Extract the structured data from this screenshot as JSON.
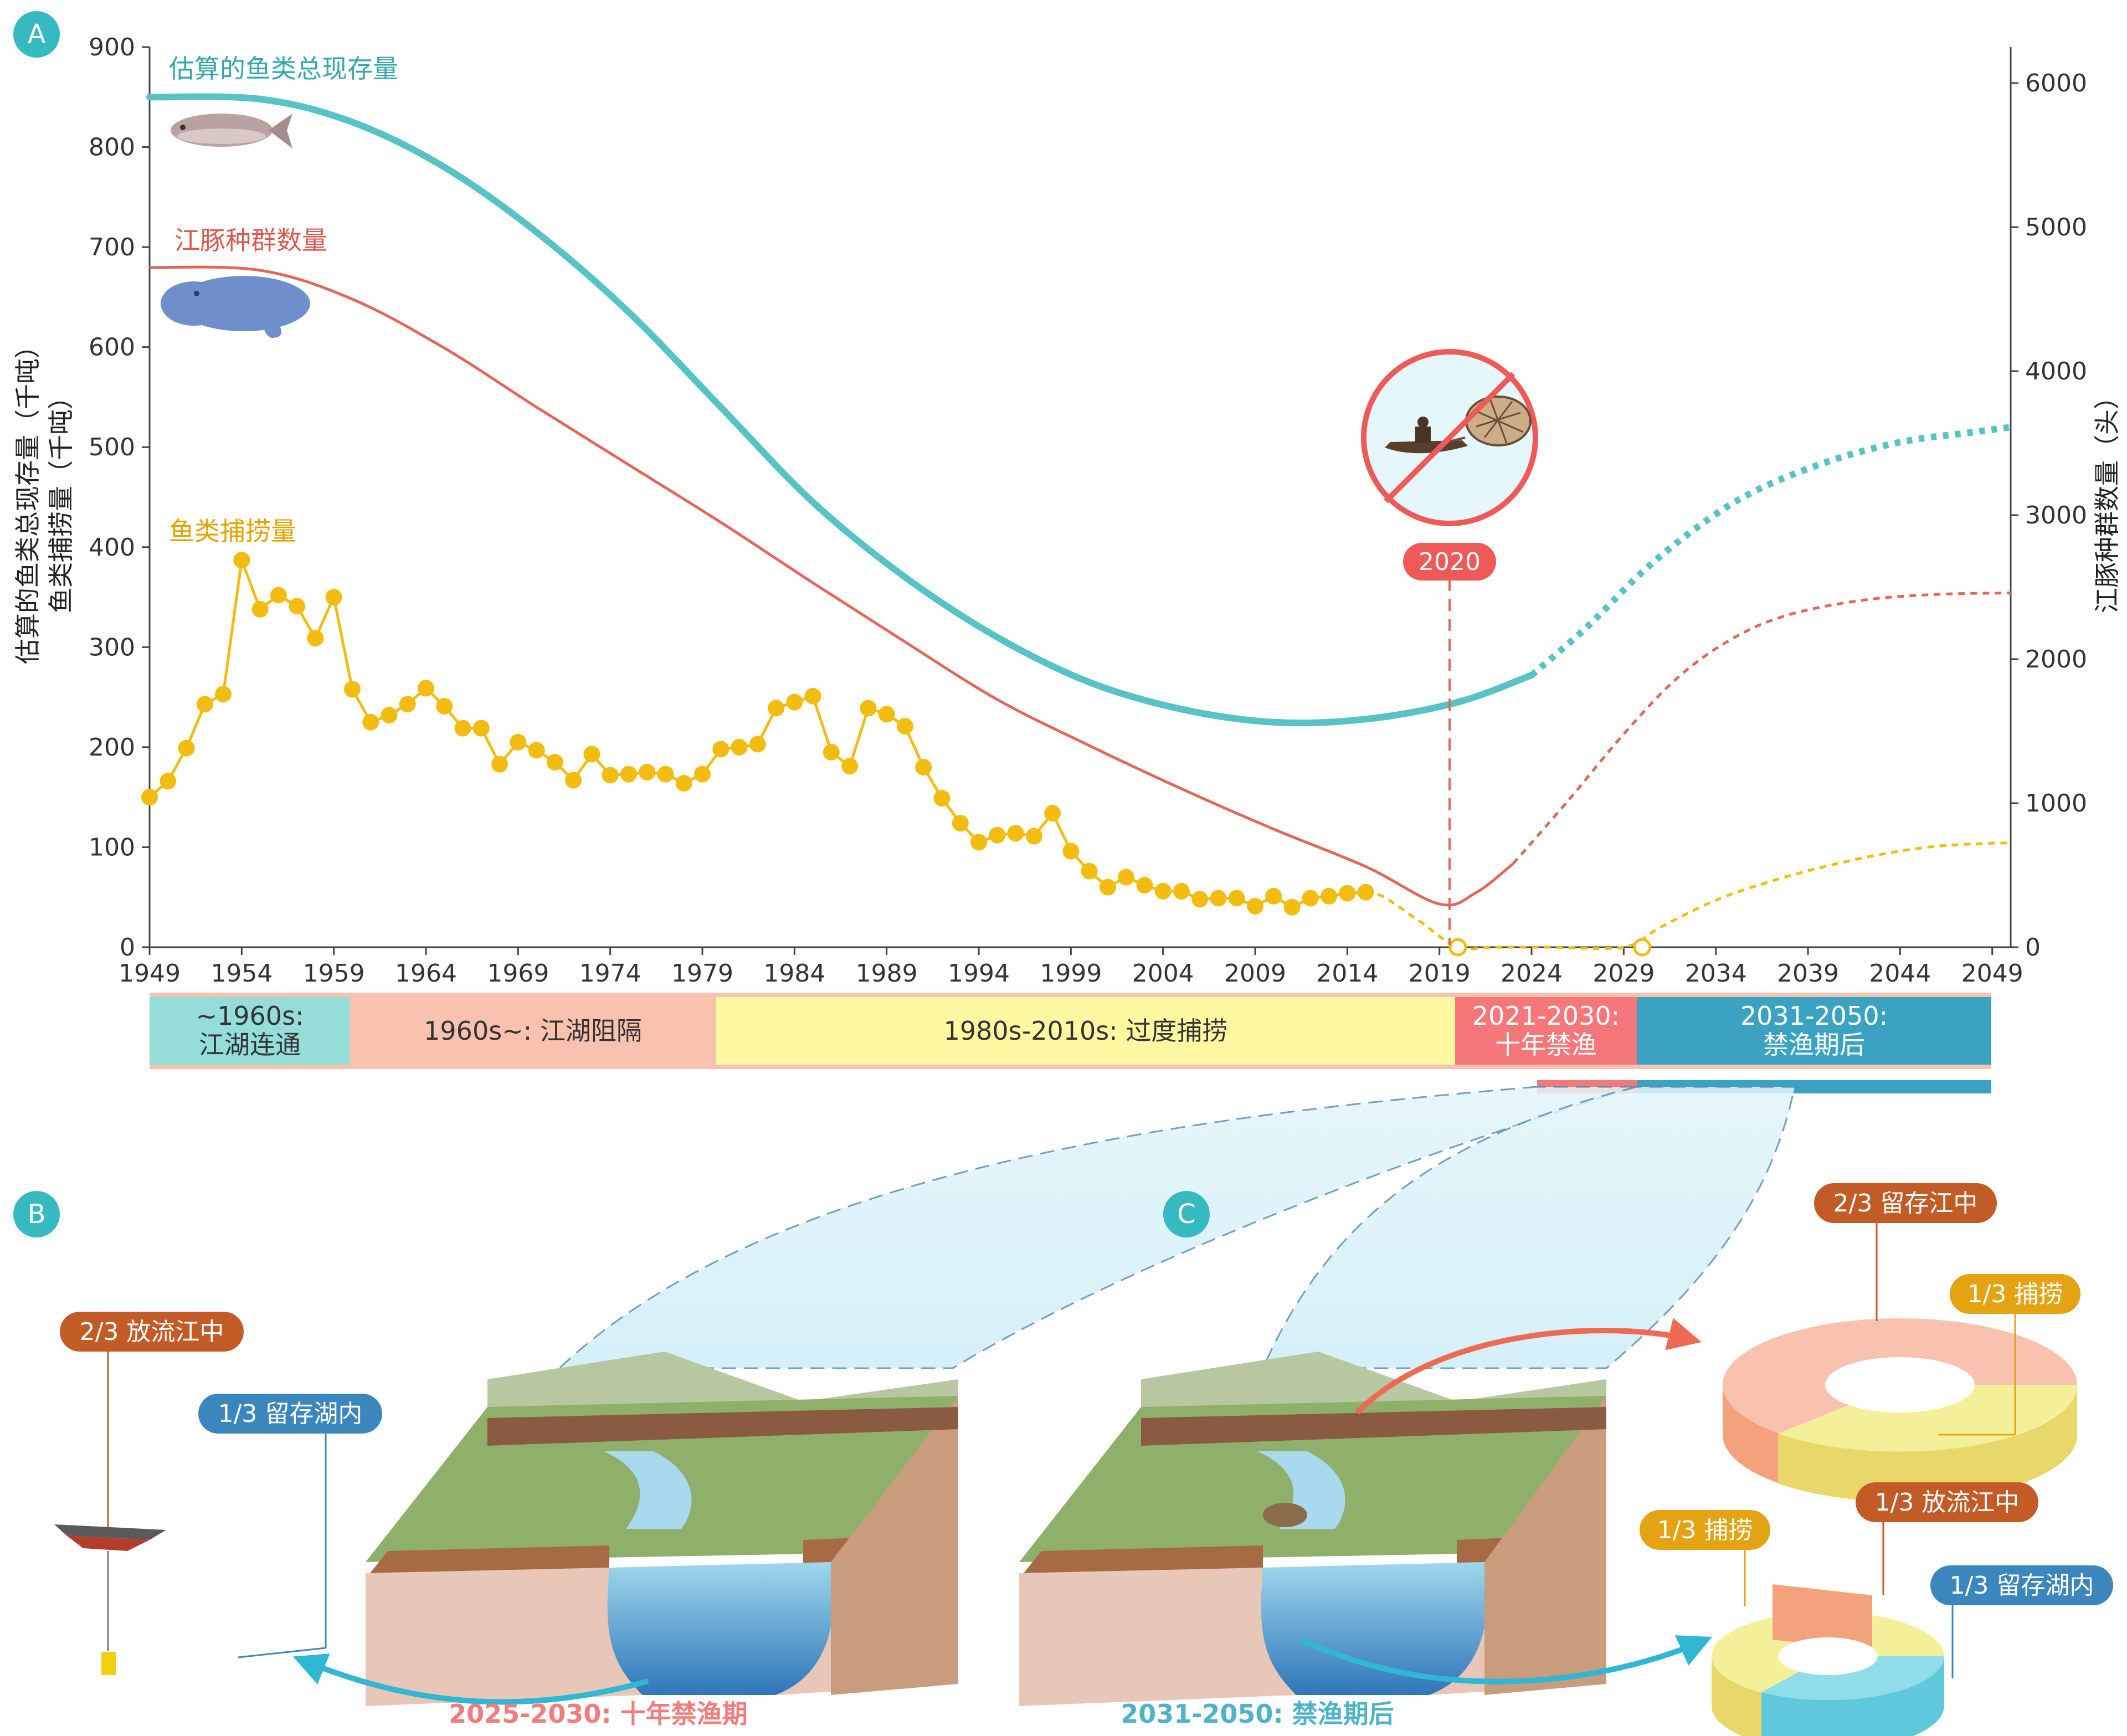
{
  "panels": {
    "a": "A",
    "b": "B",
    "c": "C"
  },
  "colors": {
    "fish_stock": "#57C3C6",
    "porpoise": "#E2665A",
    "catch": "#F2BD10",
    "ban_red": "#F06A66",
    "era1": "#95DDD8",
    "era2": "#F9C2AE",
    "era3": "#FFF8A2",
    "era4": "#F6777A",
    "era5": "#3BA3C1",
    "panel_circle": "#36B9C1",
    "orange_tag": "#C35B26",
    "blue_tag": "#3C86BE",
    "gold_tag": "#E3A312"
  },
  "chart_data": {
    "type": "line",
    "xlabel": "",
    "ylabel_left": [
      "估算的鱼类总现存量（千吨）",
      "鱼类捕捞量（千吨）"
    ],
    "ylabel_right": "江豚种群数量（头）",
    "xlim": [
      1949,
      2050
    ],
    "ylim_left": [
      0,
      900
    ],
    "ylim_right": [
      0,
      6250
    ],
    "x_ticks": [
      "1949",
      "1954",
      "1959",
      "1964",
      "1969",
      "1974",
      "1979",
      "1984",
      "1989",
      "1994",
      "1999",
      "2004",
      "2009",
      "2014",
      "2019",
      "2024",
      "2029",
      "2034",
      "2039",
      "2044",
      "2049"
    ],
    "y_left_ticks": [
      "0",
      "100",
      "200",
      "300",
      "400",
      "500",
      "600",
      "700",
      "800",
      "900"
    ],
    "y_right_ticks": [
      "0",
      "1000",
      "2000",
      "3000",
      "4000",
      "5000",
      "6000"
    ],
    "grid": false,
    "series": [
      {
        "name": "估算的鱼类总现存量",
        "axis": "left",
        "style": "solid",
        "x": [
          1949,
          1955,
          1960,
          1965,
          1970,
          1975,
          1980,
          1985,
          1990,
          1995,
          2000,
          2005,
          2010,
          2015,
          2020,
          2024
        ],
        "y": [
          850,
          848,
          825,
          780,
          715,
          635,
          540,
          445,
          370,
          310,
          265,
          238,
          225,
          228,
          245,
          272
        ],
        "projection": {
          "style": "dotted",
          "x": [
            2024,
            2027,
            2030,
            2033,
            2036,
            2040,
            2044,
            2048,
            2050
          ],
          "y": [
            272,
            320,
            375,
            420,
            455,
            485,
            505,
            515,
            520
          ]
        }
      },
      {
        "name": "江豚种群数量",
        "axis": "right",
        "style": "solid",
        "x": [
          1949,
          1955,
          1960,
          1965,
          1970,
          1975,
          1980,
          1985,
          1990,
          1995,
          2000,
          2005,
          2010,
          2015,
          2019,
          2021,
          2023
        ],
        "y": [
          4720,
          4700,
          4500,
          4160,
          3750,
          3350,
          2950,
          2530,
          2120,
          1720,
          1400,
          1100,
          820,
          560,
          300,
          380,
          580
        ],
        "projection": {
          "style": "dotted",
          "x": [
            2023,
            2026,
            2029,
            2032,
            2035,
            2038,
            2042,
            2046,
            2050
          ],
          "y": [
            580,
            1020,
            1480,
            1880,
            2150,
            2310,
            2410,
            2450,
            2460
          ]
        }
      },
      {
        "name": "鱼类捕捞量",
        "axis": "left",
        "style": "solid-with-markers",
        "x": [
          1949,
          1950,
          1951,
          1952,
          1953,
          1954,
          1955,
          1956,
          1957,
          1958,
          1959,
          1960,
          1961,
          1962,
          1963,
          1964,
          1965,
          1966,
          1967,
          1968,
          1969,
          1970,
          1971,
          1972,
          1973,
          1974,
          1975,
          1976,
          1977,
          1978,
          1979,
          1980,
          1981,
          1982,
          1983,
          1984,
          1985,
          1986,
          1987,
          1988,
          1989,
          1990,
          1991,
          1992,
          1993,
          1994,
          1995,
          1996,
          1997,
          1998,
          1999,
          2000,
          2001,
          2002,
          2003,
          2004,
          2005,
          2006,
          2007,
          2008,
          2009,
          2010,
          2011,
          2012,
          2013,
          2014,
          2015
        ],
        "y": [
          150,
          166,
          199,
          243,
          253,
          387,
          338,
          352,
          341,
          309,
          350,
          258,
          225,
          232,
          243,
          259,
          241,
          219,
          219,
          183,
          205,
          197,
          185,
          167,
          193,
          172,
          173,
          175,
          173,
          164,
          173,
          198,
          200,
          203,
          239,
          245,
          251,
          195,
          181,
          239,
          233,
          221,
          180,
          149,
          124,
          105,
          112,
          114,
          111,
          134,
          96,
          76,
          60,
          70,
          62,
          56,
          56,
          48,
          49,
          49,
          41,
          51,
          40,
          49,
          51,
          54,
          55
        ],
        "projection": {
          "style": "dotted",
          "x": [
            2015,
            2016,
            2018,
            2020,
            2022,
            2025,
            2029,
            2031,
            2034,
            2037,
            2040,
            2043,
            2046,
            2049,
            2050
          ],
          "y": [
            55,
            50,
            25,
            0,
            0,
            0,
            0,
            20,
            47,
            66,
            81,
            93,
            101,
            104,
            104
          ]
        },
        "open_markers": {
          "x": [
            2020,
            2030
          ],
          "y": [
            0,
            0
          ]
        }
      }
    ],
    "annotations": [
      {
        "x": 2020,
        "label": "2020"
      }
    ]
  },
  "eras": [
    {
      "label": "~1960s:",
      "label2": "江湖连通"
    },
    {
      "label": "1960s~: 江湖阻隔"
    },
    {
      "label": "1980s-2010s: 过度捕捞"
    },
    {
      "label": "2021-2030:",
      "label2": "十年禁渔"
    },
    {
      "label": "2031-2050:",
      "label2": "禁渔期后"
    }
  ],
  "panel_b": {
    "tag_orange": "2/3 放流江中",
    "tag_blue": "1/3 留存湖内",
    "caption": "2025-2030: 十年禁渔期"
  },
  "panel_c": {
    "tag_top_orange": "2/3 留存江中",
    "tag_top_gold": "1/3 捕捞",
    "tag_bottom_gold": "1/3 捕捞",
    "tag_bottom_orange": "1/3 放流江中",
    "tag_bottom_blue": "1/3 留存湖内",
    "caption": "2031-2050: 禁渔期后"
  }
}
